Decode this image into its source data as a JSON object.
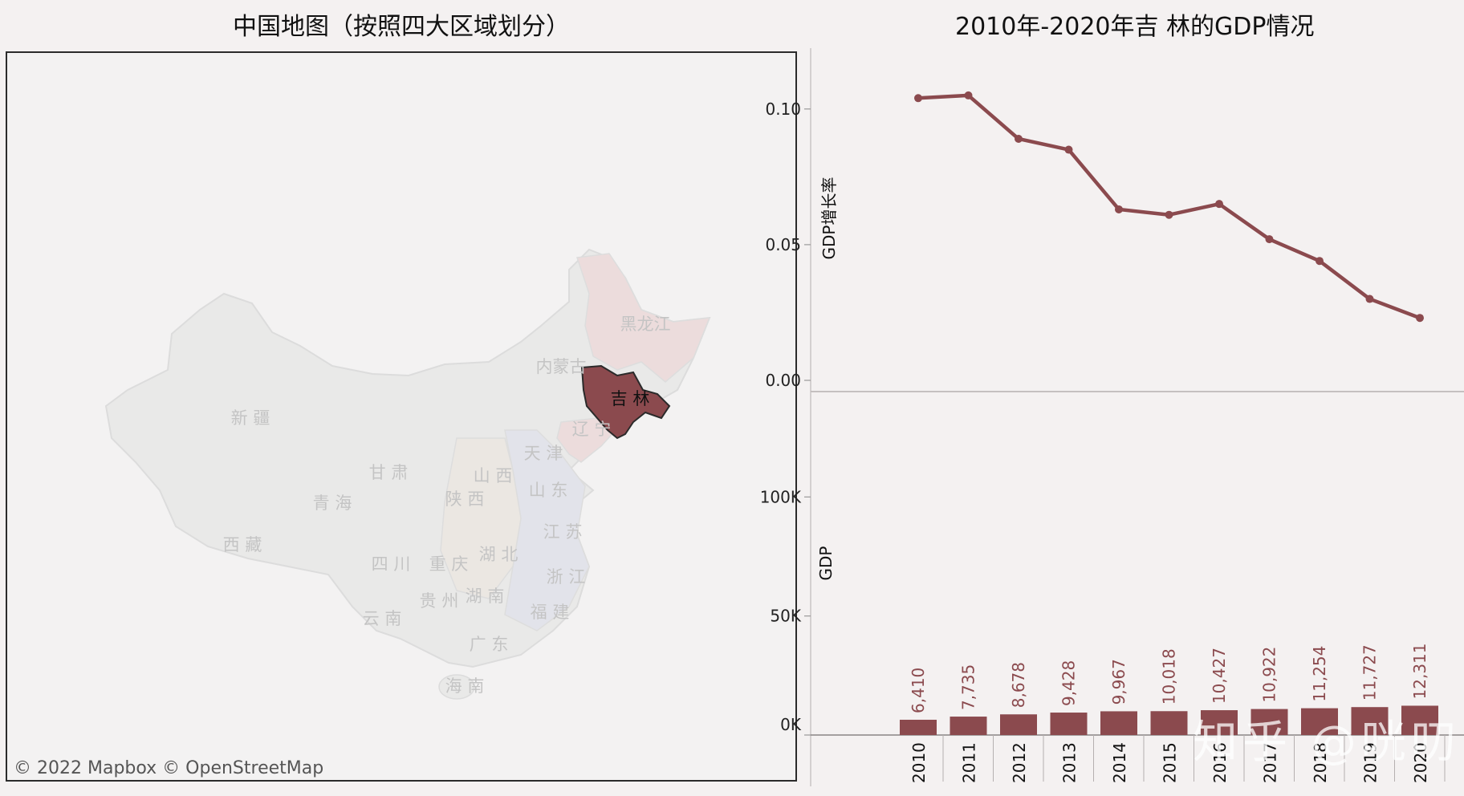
{
  "map": {
    "title": "中国地图（按照四大区域划分）",
    "highlight_color": "#8b4a4e",
    "highlighted_province": "吉 林",
    "province_labels": [
      "黑龙江",
      "内蒙古",
      "吉 林",
      "辽 宁",
      "新 疆",
      "天 津",
      "甘 肃",
      "山 西",
      "山 东",
      "青 海",
      "陕 西",
      "西 藏",
      "江 苏",
      "四 川",
      "重 庆",
      "湖 北",
      "浙 江",
      "贵 州",
      "湖 南",
      "云 南",
      "福 建",
      "广 东",
      "海 南"
    ],
    "copyright": [
      "© 2022 Mapbox",
      "© OpenStreetMap"
    ]
  },
  "chart_title": "2010年-2020年吉 林的GDP情况",
  "watermark": "知乎 @咣叨",
  "chart_data": [
    {
      "type": "line",
      "x": [
        "2010",
        "2011",
        "2012",
        "2013",
        "2014",
        "2015",
        "2016",
        "2017",
        "2018",
        "2019",
        "2020"
      ],
      "series": [
        {
          "values": [
            0.104,
            0.105,
            0.089,
            0.085,
            0.063,
            0.061,
            0.065,
            0.052,
            0.044,
            0.03,
            0.023
          ]
        }
      ],
      "ylabel": "GDP增长率",
      "yticks": [
        "0.10",
        "0.05",
        "0.00"
      ],
      "ylim": [
        0.0,
        0.11
      ],
      "color": "#8b4a4e"
    },
    {
      "type": "bar",
      "categories": [
        "2010",
        "2011",
        "2012",
        "2013",
        "2014",
        "2015",
        "2016",
        "2017",
        "2018",
        "2019",
        "2020"
      ],
      "values": [
        6410,
        7735,
        8678,
        9428,
        9967,
        10018,
        10427,
        10922,
        11254,
        11727,
        12311
      ],
      "labels": [
        "6,410",
        "7,735",
        "8,678",
        "9,428",
        "9,967",
        "10,018",
        "10,427",
        "10,922",
        "11,254",
        "11,727",
        "12,311"
      ],
      "ylabel": "GDP",
      "yticks": [
        "100K",
        "50K",
        "0K"
      ],
      "ylim": [
        0,
        120000
      ],
      "color": "#8b4a4e"
    }
  ]
}
